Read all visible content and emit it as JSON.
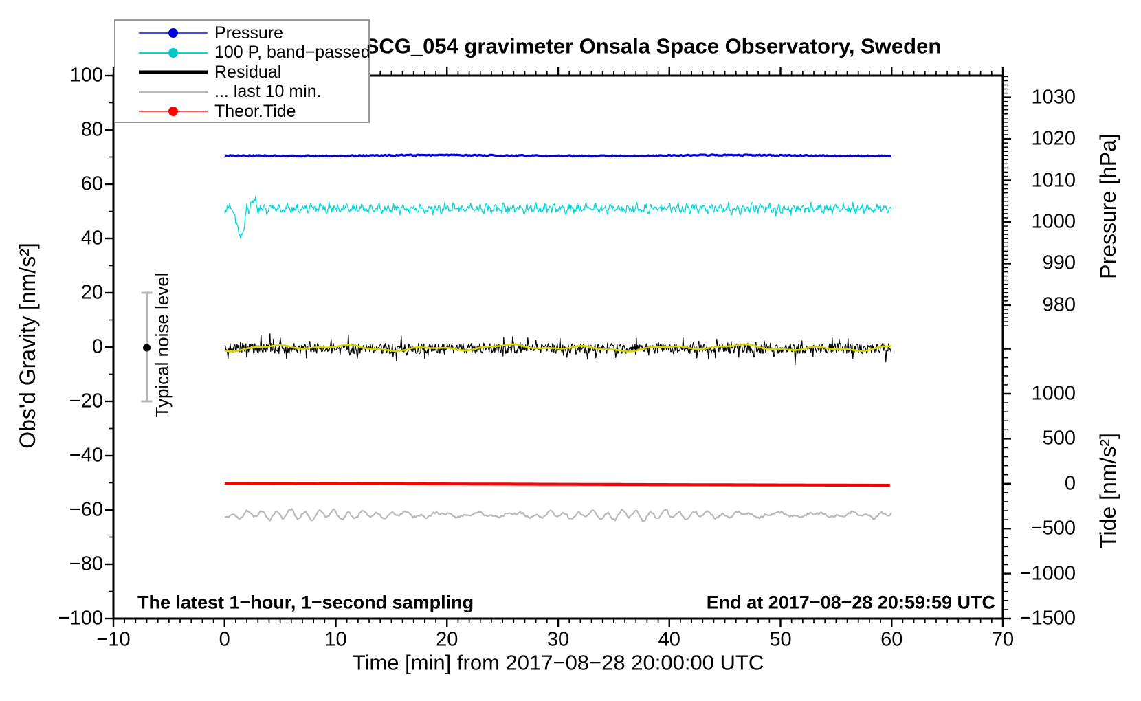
{
  "chart_data": {
    "type": "line",
    "title": "SCG_054 gravimeter Onsala Space Observatory, Sweden",
    "xlabel": "Time [min] from 2017−08−28 20:00:00 UTC",
    "grid": false,
    "background": "#ffffff",
    "legend_position": "top-left",
    "x_axis": {
      "min": -10,
      "max": 70,
      "unit": "min",
      "major_tick_step": 10,
      "minor_tick_step": 1,
      "tick_values": [
        -10,
        0,
        10,
        20,
        30,
        40,
        50,
        60,
        70
      ],
      "tick_labels": [
        "−10",
        "0",
        "10",
        "20",
        "30",
        "40",
        "50",
        "60",
        "70"
      ]
    },
    "y_axis_left": {
      "label": "Obs'd Gravity [nm/s²]",
      "min": -100,
      "max": 100,
      "major_tick_step": 20,
      "minor_tick_step": 10,
      "tick_values": [
        100,
        80,
        60,
        40,
        20,
        0,
        -20,
        -40,
        -60,
        -80,
        -100
      ],
      "tick_labels": [
        "100",
        "80",
        "60",
        "40",
        "20",
        "0",
        "−20",
        "−40",
        "−60",
        "−80",
        "−100"
      ]
    },
    "y_axis_right_pressure": {
      "label": "Pressure [hPa]",
      "tick_values": [
        1030,
        1020,
        1010,
        1000,
        990,
        980
      ],
      "tick_labels": [
        "1030",
        "1020",
        "1010",
        "1000",
        "990",
        "980"
      ],
      "minor_tick_step": 1,
      "minor_range_min": 975,
      "minor_range_max": 1035
    },
    "y_axis_right_tide": {
      "label": "Tide [nm/s²]",
      "tick_values": [
        1000,
        500,
        0,
        -500,
        -1000,
        -1500
      ],
      "tick_labels": [
        "1000",
        "500",
        "0",
        "−500",
        "−1000",
        "−1500"
      ],
      "minor_tick_step": 100,
      "minor_range_min": -1500,
      "minor_range_max": 1500
    },
    "series": [
      {
        "id": "pressure",
        "label": "Pressure",
        "color": "#0000dd",
        "marker": "dot",
        "axis": "pressure",
        "x_span_min": [
          0,
          60
        ],
        "approx_mean_hpa": 1016,
        "approx_noise_hpa": 0.15,
        "gravity_axis_equivalent": 70.5,
        "line_width": 3.2,
        "profile": "flat"
      },
      {
        "id": "pressure-band-passed",
        "label": "100 P, band−passed",
        "color": "#00d9d9",
        "marker": "dot",
        "axis": "gravity",
        "x_span_min": [
          0,
          60
        ],
        "approx_mean": 51,
        "approx_noise": 2.5,
        "line_width": 1.3,
        "profile": "band-noise"
      },
      {
        "id": "residual",
        "label": "Residual",
        "color": "#000000",
        "marker": "none",
        "axis": "gravity",
        "x_span_min": [
          0,
          60
        ],
        "approx_mean": -0.5,
        "approx_noise": 2,
        "spike_amplitude": 6,
        "line_width": 1.2,
        "profile": "spiky-noise"
      },
      {
        "id": "residual-smoothed-overlay",
        "label": "",
        "color": "#d6d600",
        "marker": "none",
        "axis": "gravity",
        "x_span_min": [
          0,
          60
        ],
        "approx_mean": -0.3,
        "approx_noise": 0.8,
        "line_width": 2.6,
        "profile": "smooth-wiggle"
      },
      {
        "id": "residual-last-10-min",
        "label": "... last 10 min.",
        "color": "#b9b9b9",
        "marker": "none",
        "axis": "gravity",
        "x_span_min": [
          0,
          60
        ],
        "approx_mean": -61.8,
        "approx_noise": 2,
        "line_width": 2.2,
        "profile": "wiggle"
      },
      {
        "id": "theor-tide",
        "label": "Theor.Tide",
        "color": "#ff0000",
        "marker": "dot",
        "axis": "tide",
        "x_span_min": [
          0,
          60
        ],
        "start_value": 5,
        "end_value": -18,
        "gravity_axis_equivalent": -50,
        "line_width": 4.2,
        "profile": "trend"
      }
    ],
    "noise_bar": {
      "label": "Typical noise level",
      "x_min": -7,
      "center": 0,
      "half_range": 20,
      "bar_color": "#b5b5b5",
      "dot_color": "#000000"
    },
    "annotations": {
      "bottom_left": "The latest 1−hour, 1−second sampling",
      "bottom_right": "End at 2017−08−28 20:59:59 UTC"
    }
  },
  "legend": {
    "items": [
      {
        "id": "pressure",
        "label": "Pressure",
        "line_color": "#4a4aee",
        "line_width": 2,
        "marker": true,
        "marker_color": "#0000dd"
      },
      {
        "id": "band-passed",
        "label": "100 P, band−passed",
        "line_color": "#00d9d9",
        "line_width": 2,
        "marker": true,
        "marker_color": "#00c8c8"
      },
      {
        "id": "residual",
        "label": "Residual",
        "line_color": "#000000",
        "line_width": 5,
        "marker": false,
        "marker_color": ""
      },
      {
        "id": "last-10-min",
        "label": "... last 10 min.",
        "line_color": "#b9b9b9",
        "line_width": 4,
        "marker": false,
        "marker_color": ""
      },
      {
        "id": "theor-tide",
        "label": "Theor.Tide",
        "line_color": "#ff5a5a",
        "line_width": 2,
        "marker": true,
        "marker_color": "#ff0000"
      }
    ]
  }
}
